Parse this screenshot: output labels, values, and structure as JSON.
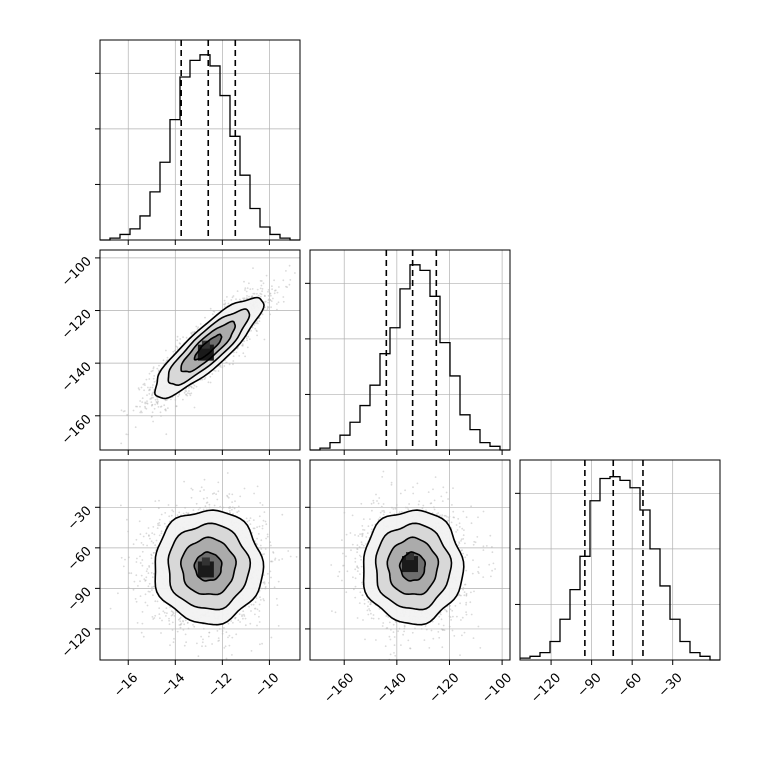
{
  "chart_data": {
    "type": "corner",
    "parameters": [
      {
        "id": "p0",
        "label": "",
        "range": [
          -17.2,
          -8.7
        ],
        "ticks": [
          -16,
          -14,
          -12,
          -10
        ],
        "tick_labels": [
          "−16",
          "−14",
          "−12",
          "−10"
        ]
      },
      {
        "id": "p1",
        "label": "",
        "range": [
          -173,
          -97
        ],
        "ticks": [
          -160,
          -140,
          -120,
          -100
        ],
        "tick_labels": [
          "−160",
          "−140",
          "−120",
          "−100"
        ]
      },
      {
        "id": "p2",
        "label": "",
        "range": [
          -143,
          5
        ],
        "ticks": [
          -120,
          -90,
          -60,
          -30
        ],
        "tick_labels": [
          "−120",
          "−90",
          "−60",
          "−30"
        ]
      }
    ],
    "grid": true,
    "histograms": [
      {
        "parameter": "p0",
        "quantiles": [
          -13.75,
          -12.6,
          -11.45
        ],
        "ymax": 1.08,
        "bin_edges": [
          -17.2,
          -16.775,
          -16.35,
          -15.925,
          -15.5,
          -15.075,
          -14.65,
          -14.225,
          -13.8,
          -13.375,
          -12.95,
          -12.525,
          -12.1,
          -11.675,
          -11.25,
          -10.825,
          -10.4,
          -9.975,
          -9.55,
          -9.125,
          -8.7
        ],
        "counts": [
          0.0,
          0.01,
          0.03,
          0.06,
          0.13,
          0.26,
          0.42,
          0.65,
          0.88,
          0.97,
          1.0,
          0.94,
          0.78,
          0.56,
          0.35,
          0.17,
          0.07,
          0.03,
          0.01,
          0.0
        ]
      },
      {
        "parameter": "p1",
        "quantiles": [
          -144,
          -134,
          -125
        ],
        "ymax": 1.08,
        "bin_edges": [
          -173,
          -169.2,
          -165.4,
          -161.6,
          -157.8,
          -154,
          -150.2,
          -146.4,
          -142.6,
          -138.8,
          -135,
          -131.2,
          -127.4,
          -123.6,
          -119.8,
          -116,
          -112.2,
          -108.4,
          -104.6,
          -100.8,
          -97
        ],
        "counts": [
          0.0,
          0.01,
          0.04,
          0.08,
          0.15,
          0.24,
          0.35,
          0.52,
          0.66,
          0.87,
          1.0,
          0.97,
          0.83,
          0.58,
          0.4,
          0.19,
          0.11,
          0.04,
          0.02,
          0.0
        ]
      },
      {
        "parameter": "p2",
        "quantiles": [
          -95,
          -74,
          -52
        ],
        "ymax": 1.08,
        "bin_edges": [
          -143,
          -135.6,
          -128.2,
          -120.8,
          -113.4,
          -106,
          -98.6,
          -91.2,
          -83.8,
          -76.4,
          -69,
          -61.6,
          -54.2,
          -46.8,
          -39.4,
          -32,
          -24.6,
          -17.2,
          -9.8,
          -2.4,
          5
        ],
        "counts": [
          0.01,
          0.02,
          0.04,
          0.1,
          0.22,
          0.38,
          0.56,
          0.86,
          0.98,
          0.99,
          0.97,
          0.93,
          0.81,
          0.6,
          0.4,
          0.22,
          0.1,
          0.04,
          0.02,
          0.0
        ]
      }
    ],
    "joint_panels": [
      {
        "x": "p0",
        "y": "p1",
        "center": [
          -12.6,
          -134
        ],
        "sigma": [
          1.15,
          9.5
        ],
        "correlation": 0.86,
        "contour_levels_sigma": [
          0.5,
          1.0,
          1.5,
          2.0
        ],
        "dark_core": [
          -12.7,
          -136
        ]
      },
      {
        "x": "p0",
        "y": "p2",
        "center": [
          -12.6,
          -74
        ],
        "sigma": [
          1.15,
          21
        ],
        "correlation": 0.0,
        "contour_levels_sigma": [
          0.5,
          1.0,
          1.5,
          2.0
        ],
        "dark_core": [
          -12.7,
          -76
        ]
      },
      {
        "x": "p1",
        "y": "p2",
        "center": [
          -134,
          -74
        ],
        "sigma": [
          9.5,
          21
        ],
        "correlation": 0.0,
        "contour_levels_sigma": [
          0.5,
          1.0,
          1.5,
          2.0
        ],
        "dark_core": [
          -135,
          -72
        ]
      }
    ],
    "colors": {
      "line": "#000000",
      "points": "#bbbbbb",
      "density": "#000000",
      "grid": "#b0b0b0"
    }
  }
}
